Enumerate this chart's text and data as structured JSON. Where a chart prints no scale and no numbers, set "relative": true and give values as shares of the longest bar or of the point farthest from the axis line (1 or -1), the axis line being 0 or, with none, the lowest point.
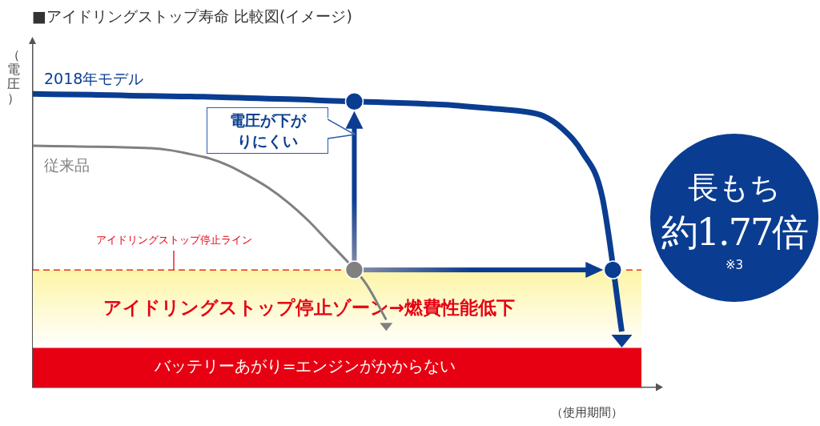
{
  "chart_data": {
    "type": "line",
    "title": "■アイドリングストップ寿命 比較図(イメージ)",
    "xlabel": "（使用期間）",
    "ylabel": "（電圧）",
    "relative": true,
    "grid": false,
    "legend": false,
    "marker": "none",
    "line_style": "solid",
    "categories": [
      null,
      null,
      null,
      null,
      null,
      null,
      null,
      null,
      null,
      null,
      null,
      null,
      null,
      null,
      null,
      null,
      null,
      null,
      null,
      null,
      null,
      null,
      null,
      null,
      null,
      null,
      null,
      null,
      null,
      null,
      null,
      null
    ],
    "series": [
      {
        "name": "2018年モデル",
        "color": "#0a3d91",
        "values": [
          1.0,
          0.999,
          0.998,
          0.997,
          0.996,
          0.994,
          0.993,
          0.992,
          0.991,
          0.99,
          0.988,
          0.986,
          0.984,
          0.982,
          0.98,
          0.977,
          0.975,
          0.973,
          0.971,
          0.969,
          0.966,
          0.963,
          0.958,
          0.952,
          0.947,
          0.94,
          0.925,
          0.88,
          0.8,
          0.65,
          0.19,
          null
        ]
      },
      {
        "name": "従来品",
        "color": "#808080",
        "values": [
          0.823,
          0.822,
          0.821,
          0.82,
          0.819,
          0.817,
          0.815,
          0.808,
          0.795,
          0.78,
          0.755,
          0.72,
          0.68,
          0.63,
          0.57,
          0.5,
          0.43,
          0.35,
          0.23,
          null,
          null,
          null,
          null,
          null,
          null,
          null,
          null,
          null,
          null,
          null,
          null,
          null
        ]
      }
    ],
    "ref_lines": [
      {
        "axis": "y",
        "value": 0.4,
        "label": "アイドリングストップ停止ライン",
        "color": "#e60012",
        "line_style": "dashed"
      }
    ],
    "bands": [
      {
        "axis": "y",
        "from": 0,
        "to": 0.135,
        "label": "バッテリーあがり=エンジンがかからない",
        "color": "#e60012"
      },
      {
        "axis": "y",
        "from": 0.135,
        "to": 0.4,
        "label": "アイドリングストップ停止ゾーン→燃費性能低下",
        "color": "#fdf5a6"
      }
    ],
    "annotations": [
      "電圧が下がりにくい",
      "長もち",
      "約1.77倍",
      "※3"
    ]
  }
}
